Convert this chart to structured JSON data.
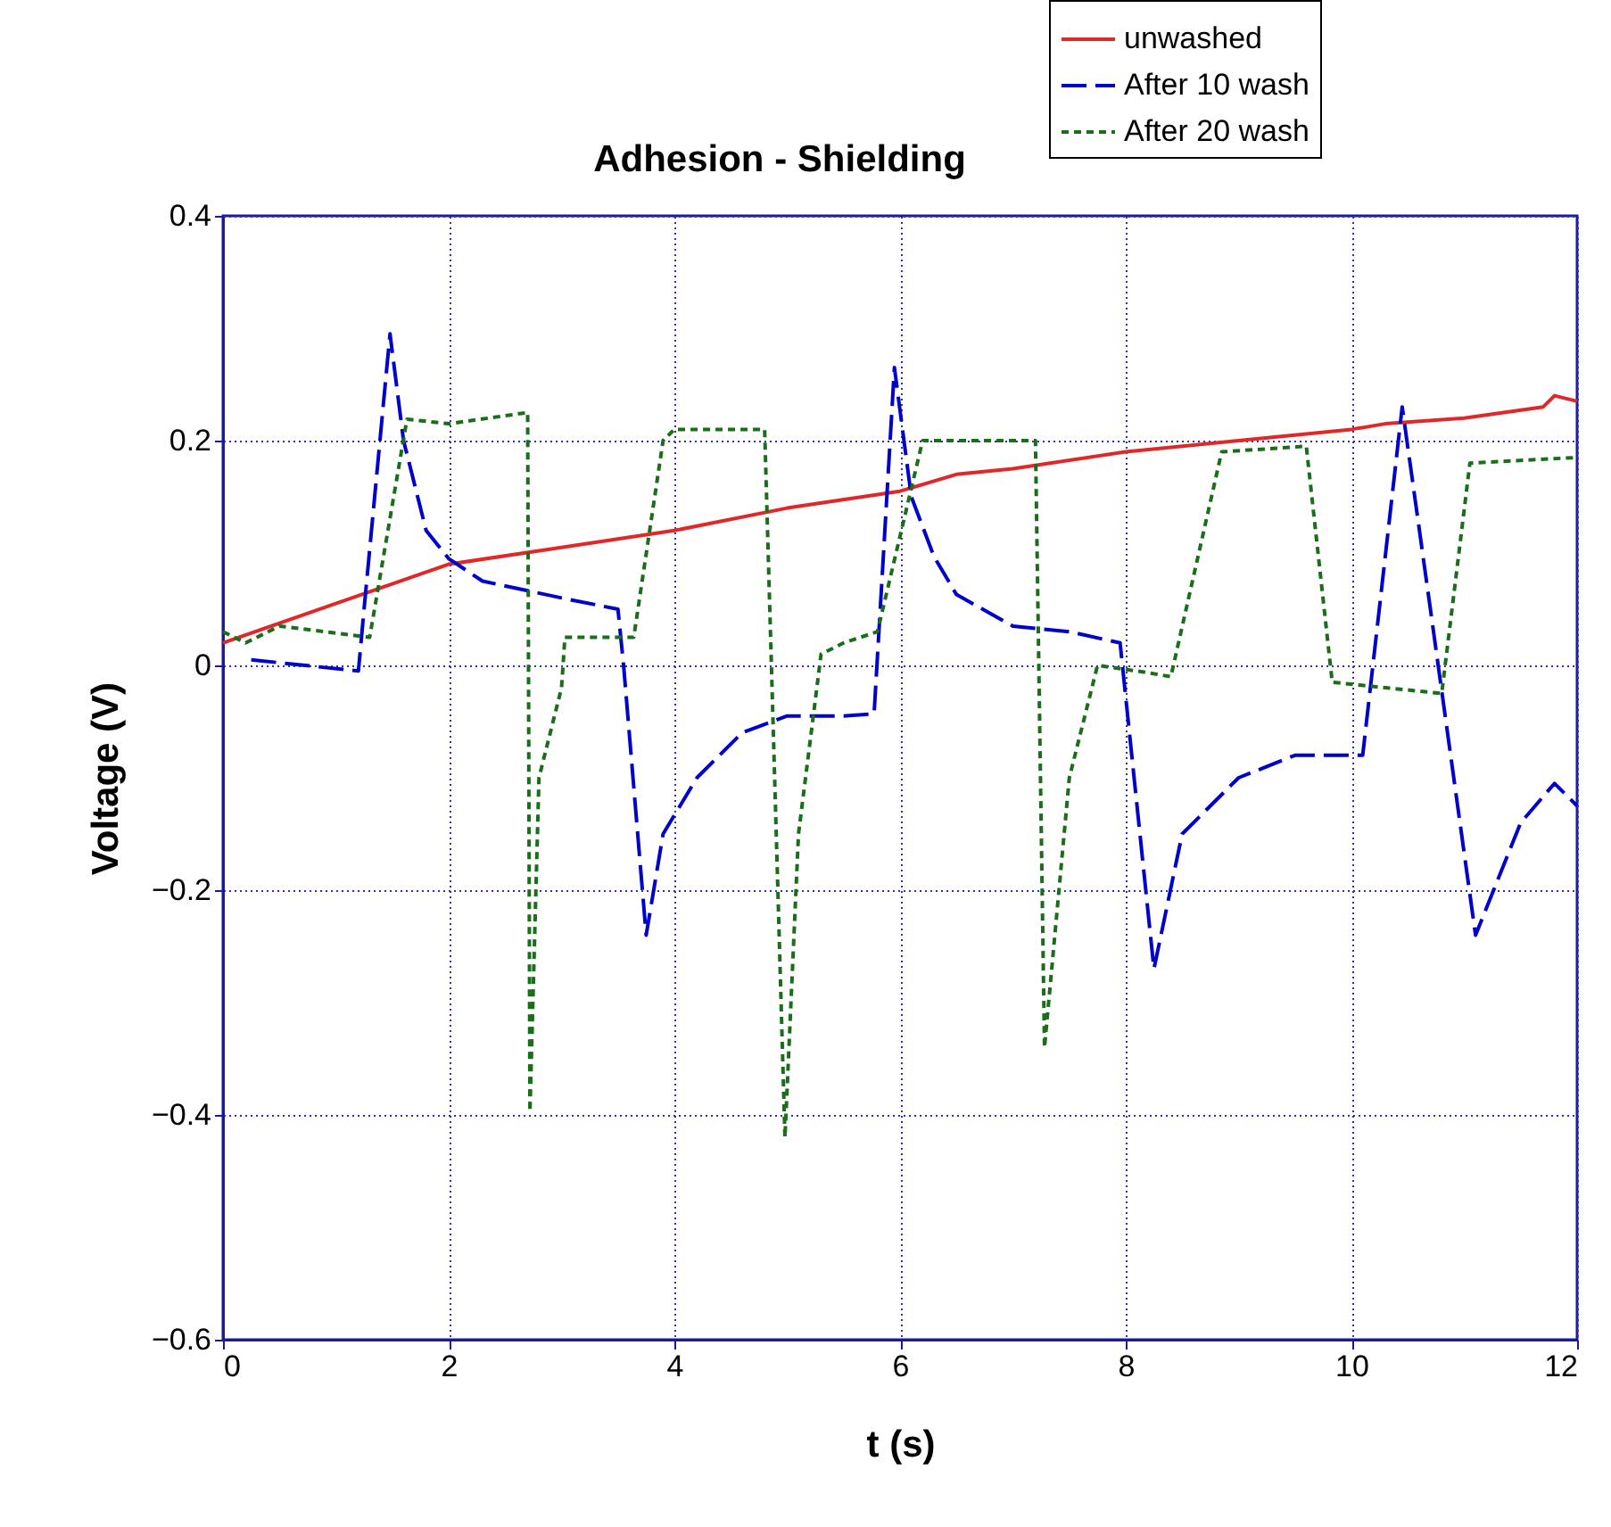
{
  "chart_data": {
    "type": "line",
    "title": "Adhesion - Shielding",
    "xlabel": "t (s)",
    "ylabel": "Voltage (V)",
    "xlim": [
      0,
      12
    ],
    "xticks": [
      0,
      2,
      4,
      6,
      8,
      10,
      12
    ],
    "ylim": [
      -0.6,
      0.4
    ],
    "yticks": [
      -0.6,
      -0.4,
      -0.2,
      0,
      0.2,
      0.4
    ],
    "grid": true,
    "legend": "top right",
    "marker": "none",
    "series": [
      {
        "name": "unwashed",
        "color": "#e02828",
        "line_style": "solid",
        "x": [
          0,
          1,
          2,
          3,
          4,
          5,
          6,
          6.5,
          7,
          8,
          9,
          10,
          10.3,
          11,
          11.7,
          11.8,
          12
        ],
        "values": [
          0.02,
          0.055,
          0.09,
          0.105,
          0.12,
          0.14,
          0.155,
          0.17,
          0.175,
          0.19,
          0.2,
          0.21,
          0.215,
          0.22,
          0.23,
          0.24,
          0.235
        ]
      },
      {
        "name": "After 10 wash",
        "color": "#0000cc",
        "line_style": "dashed",
        "x": [
          0.25,
          1.2,
          1.25,
          1.48,
          1.6,
          1.8,
          2,
          2.3,
          3,
          3.5,
          3.55,
          3.75,
          3.9,
          4.2,
          4.6,
          5,
          5.5,
          5.77,
          5.95,
          6.1,
          6.3,
          6.5,
          7,
          7.5,
          7.95,
          8.25,
          8.5,
          9,
          9.5,
          10.1,
          10.45,
          10.7,
          11.1,
          11.5,
          11.8,
          12
        ],
        "values": [
          0.005,
          -0.005,
          0.05,
          0.295,
          0.2,
          0.12,
          0.095,
          0.075,
          0.06,
          0.05,
          0.0,
          -0.24,
          -0.15,
          -0.1,
          -0.06,
          -0.045,
          -0.045,
          -0.043,
          0.265,
          0.15,
          0.097,
          0.063,
          0.035,
          0.03,
          0.02,
          -0.27,
          -0.15,
          -0.1,
          -0.08,
          -0.08,
          0.23,
          0.05,
          -0.24,
          -0.14,
          -0.105,
          -0.125
        ]
      },
      {
        "name": "After 20 wash",
        "color": "#1a6e1a",
        "line_style": "dotted",
        "x": [
          0,
          0.2,
          0.5,
          1.3,
          1.63,
          2,
          2.7,
          2.72,
          2.8,
          3.0,
          3.03,
          3.64,
          3.9,
          4,
          4.8,
          4.98,
          5.1,
          5.3,
          5.5,
          5.8,
          6.2,
          7.2,
          7.28,
          7.5,
          7.75,
          8.1,
          8.4,
          8.85,
          9.6,
          9.83,
          10.8,
          11.05,
          12
        ],
        "values": [
          0.03,
          0.02,
          0.035,
          0.025,
          0.219,
          0.215,
          0.225,
          -0.397,
          -0.1,
          -0.02,
          0.025,
          0.025,
          0.2,
          0.21,
          0.21,
          -0.42,
          -0.15,
          0.01,
          0.02,
          0.03,
          0.2,
          0.2,
          -0.34,
          -0.1,
          0.0,
          -0.005,
          -0.01,
          0.19,
          0.195,
          -0.015,
          -0.025,
          0.18,
          0.185
        ]
      }
    ]
  }
}
